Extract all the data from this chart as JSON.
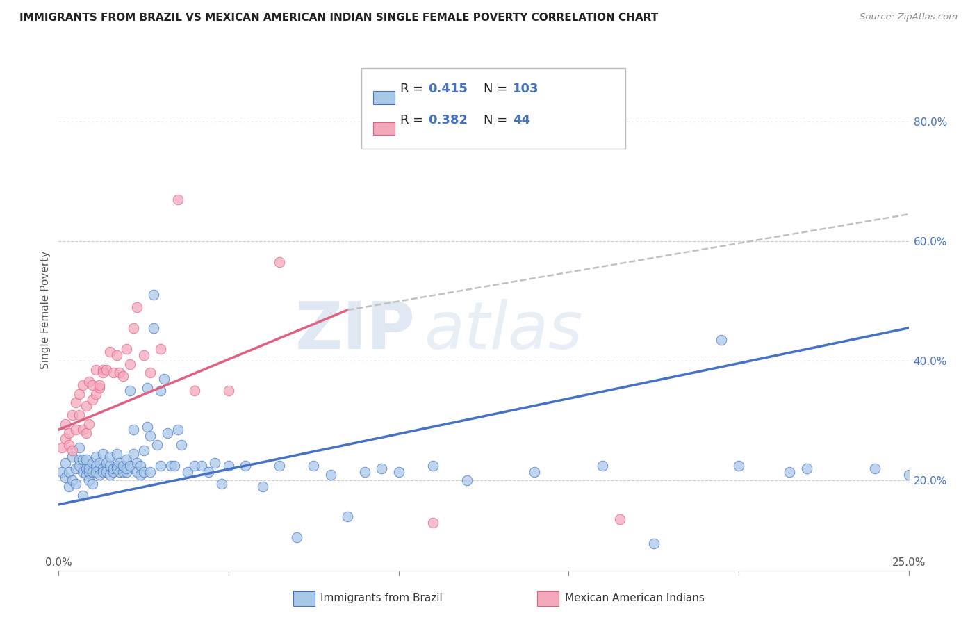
{
  "title": "IMMIGRANTS FROM BRAZIL VS MEXICAN AMERICAN INDIAN SINGLE FEMALE POVERTY CORRELATION CHART",
  "source": "Source: ZipAtlas.com",
  "ylabel": "Single Female Poverty",
  "yaxis_ticks": [
    0.2,
    0.4,
    0.6,
    0.8
  ],
  "yaxis_labels": [
    "20.0%",
    "40.0%",
    "60.0%",
    "80.0%"
  ],
  "legend_label1": "Immigrants from Brazil",
  "legend_label2": "Mexican American Indians",
  "color_blue": "#a8c8e8",
  "color_pink": "#f4a8bc",
  "line_blue": "#4472c4",
  "line_pink": "#e06080",
  "watermark_zip": "ZIP",
  "watermark_atlas": "atlas",
  "xlim": [
    0.0,
    0.25
  ],
  "ylim": [
    0.05,
    0.92
  ],
  "blue_line_x": [
    0.0,
    0.25
  ],
  "blue_line_y": [
    0.16,
    0.455
  ],
  "pink_line_x": [
    0.0,
    0.085
  ],
  "pink_line_y": [
    0.285,
    0.485
  ],
  "pink_dashed_line_x": [
    0.085,
    0.25
  ],
  "pink_dashed_line_y": [
    0.485,
    0.645
  ],
  "blue_points_x": [
    0.001,
    0.002,
    0.002,
    0.003,
    0.003,
    0.004,
    0.004,
    0.005,
    0.005,
    0.006,
    0.006,
    0.006,
    0.007,
    0.007,
    0.007,
    0.008,
    0.008,
    0.008,
    0.009,
    0.009,
    0.009,
    0.01,
    0.01,
    0.01,
    0.011,
    0.011,
    0.011,
    0.012,
    0.012,
    0.012,
    0.013,
    0.013,
    0.013,
    0.014,
    0.014,
    0.015,
    0.015,
    0.015,
    0.016,
    0.016,
    0.017,
    0.017,
    0.017,
    0.018,
    0.018,
    0.019,
    0.019,
    0.02,
    0.02,
    0.02,
    0.021,
    0.021,
    0.022,
    0.022,
    0.023,
    0.023,
    0.024,
    0.024,
    0.025,
    0.025,
    0.026,
    0.026,
    0.027,
    0.027,
    0.028,
    0.028,
    0.029,
    0.03,
    0.03,
    0.031,
    0.032,
    0.033,
    0.034,
    0.035,
    0.036,
    0.038,
    0.04,
    0.042,
    0.044,
    0.046,
    0.048,
    0.05,
    0.055,
    0.06,
    0.065,
    0.07,
    0.075,
    0.08,
    0.085,
    0.09,
    0.095,
    0.1,
    0.11,
    0.12,
    0.14,
    0.16,
    0.175,
    0.195,
    0.2,
    0.215,
    0.22,
    0.24,
    0.25
  ],
  "blue_points_y": [
    0.215,
    0.205,
    0.23,
    0.19,
    0.215,
    0.2,
    0.24,
    0.22,
    0.195,
    0.235,
    0.225,
    0.255,
    0.215,
    0.235,
    0.175,
    0.22,
    0.21,
    0.235,
    0.215,
    0.22,
    0.2,
    0.215,
    0.23,
    0.195,
    0.225,
    0.215,
    0.24,
    0.22,
    0.21,
    0.23,
    0.22,
    0.245,
    0.215,
    0.23,
    0.215,
    0.225,
    0.21,
    0.24,
    0.215,
    0.22,
    0.225,
    0.22,
    0.245,
    0.215,
    0.23,
    0.215,
    0.225,
    0.215,
    0.235,
    0.22,
    0.225,
    0.35,
    0.285,
    0.245,
    0.23,
    0.215,
    0.225,
    0.21,
    0.25,
    0.215,
    0.29,
    0.355,
    0.275,
    0.215,
    0.51,
    0.455,
    0.26,
    0.225,
    0.35,
    0.37,
    0.28,
    0.225,
    0.225,
    0.285,
    0.26,
    0.215,
    0.225,
    0.225,
    0.215,
    0.23,
    0.195,
    0.225,
    0.225,
    0.19,
    0.225,
    0.105,
    0.225,
    0.21,
    0.14,
    0.215,
    0.22,
    0.215,
    0.225,
    0.2,
    0.215,
    0.225,
    0.095,
    0.435,
    0.225,
    0.215,
    0.22,
    0.22,
    0.21
  ],
  "pink_points_x": [
    0.001,
    0.002,
    0.002,
    0.003,
    0.003,
    0.004,
    0.004,
    0.005,
    0.005,
    0.006,
    0.006,
    0.007,
    0.007,
    0.008,
    0.008,
    0.009,
    0.009,
    0.01,
    0.01,
    0.011,
    0.011,
    0.012,
    0.012,
    0.013,
    0.013,
    0.014,
    0.015,
    0.016,
    0.017,
    0.018,
    0.019,
    0.02,
    0.021,
    0.022,
    0.023,
    0.025,
    0.027,
    0.03,
    0.035,
    0.04,
    0.05,
    0.065,
    0.11,
    0.165
  ],
  "pink_points_y": [
    0.255,
    0.27,
    0.295,
    0.26,
    0.28,
    0.25,
    0.31,
    0.285,
    0.33,
    0.345,
    0.31,
    0.36,
    0.285,
    0.325,
    0.28,
    0.365,
    0.295,
    0.335,
    0.36,
    0.345,
    0.385,
    0.355,
    0.36,
    0.385,
    0.38,
    0.385,
    0.415,
    0.38,
    0.41,
    0.38,
    0.375,
    0.42,
    0.395,
    0.455,
    0.49,
    0.41,
    0.38,
    0.42,
    0.67,
    0.35,
    0.35,
    0.565,
    0.13,
    0.135
  ]
}
